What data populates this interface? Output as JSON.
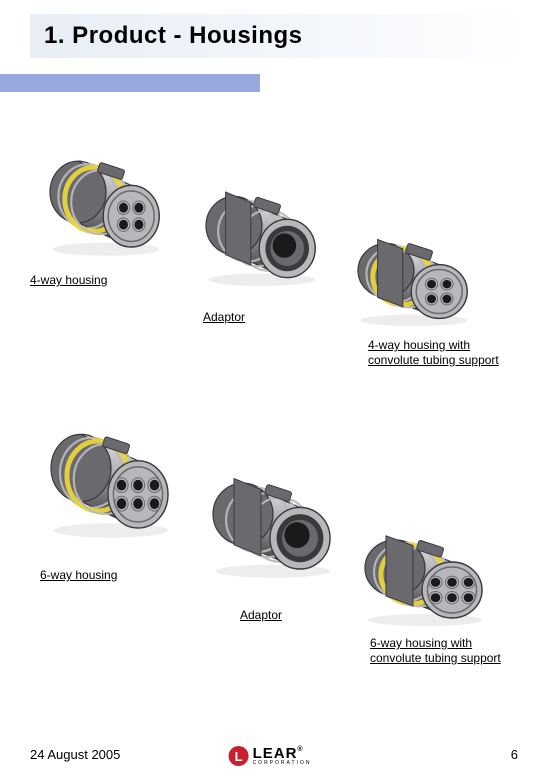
{
  "title": "1. Product   -   Housings",
  "labels": {
    "housing4": "4-way housing",
    "adaptor1": "Adaptor",
    "housing4conv": "4-way housing with convolute tubing support",
    "housing6": "6-way housing",
    "adaptor2": "Adaptor",
    "housing6conv": "6-way housing with convolute tubing support"
  },
  "footer": {
    "date": "24 August 2005",
    "page": "6"
  },
  "logo": {
    "initial": "L",
    "name": "LEAR",
    "sub": "CORPORATION",
    "tm": "®"
  },
  "colors": {
    "titleBand": "#e8eef6",
    "blueBar": "#9aa8e0",
    "bodyDark": "#3a3a3c",
    "bodyMid": "#6a6a6e",
    "bodyLight": "#b8b8bc",
    "bodyHighlight": "#e4e4e8",
    "accentYellow": "#e8d53a",
    "pinHole": "#1a1a1c",
    "logoRed": "#c8202f"
  },
  "connectors": [
    {
      "id": "c1",
      "ways": 4,
      "hasYellowBand": true,
      "showFace": true,
      "type": "housing"
    },
    {
      "id": "c2",
      "ways": 4,
      "hasYellowBand": false,
      "showFace": false,
      "type": "adaptor"
    },
    {
      "id": "c3",
      "ways": 4,
      "hasYellowBand": true,
      "showFace": true,
      "type": "convolute"
    },
    {
      "id": "c4",
      "ways": 6,
      "hasYellowBand": true,
      "showFace": true,
      "type": "housing"
    },
    {
      "id": "c5",
      "ways": 6,
      "hasYellowBand": false,
      "showFace": false,
      "type": "adaptor"
    },
    {
      "id": "c6",
      "ways": 6,
      "hasYellowBand": true,
      "showFace": true,
      "type": "convolute"
    }
  ]
}
